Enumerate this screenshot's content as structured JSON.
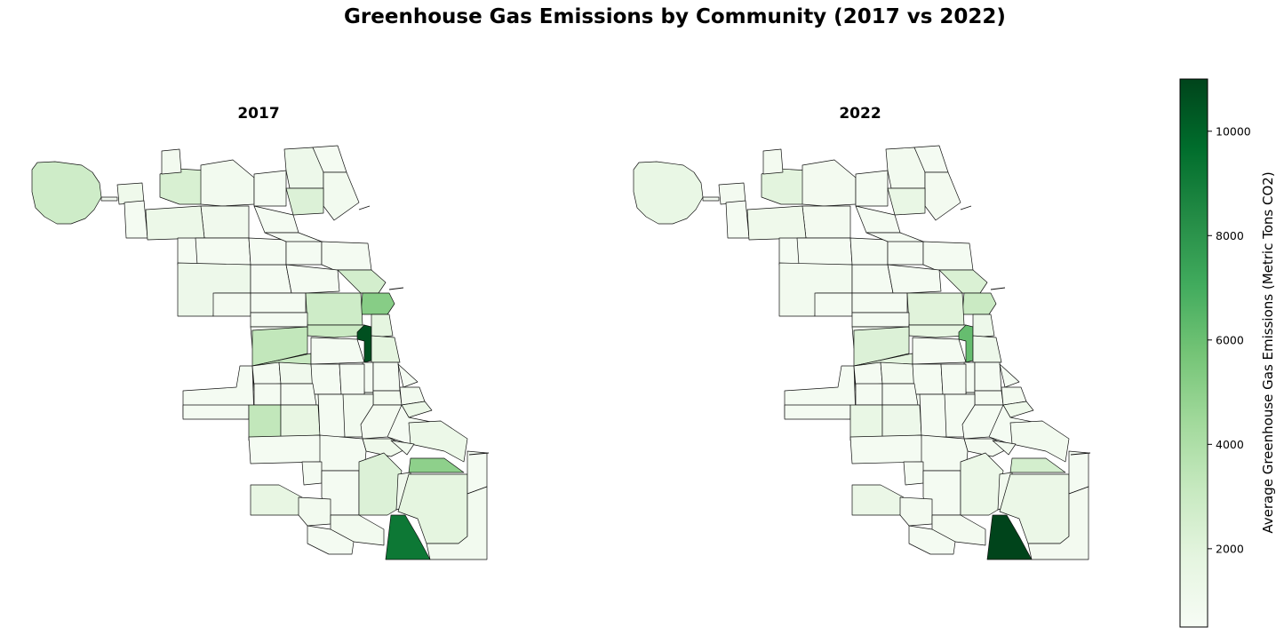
{
  "title": "Greenhouse Gas Emissions by Community (2017 vs 2022)",
  "panels": [
    {
      "title": "2017"
    },
    {
      "title": "2022"
    }
  ],
  "colorbar": {
    "label": "Average Greenhouse Gas Emissions (Metric Tons CO2)",
    "colormap": "Greens",
    "range": [
      500,
      11000
    ],
    "ticks": [
      "2000",
      "4000",
      "6000",
      "8000",
      "10000"
    ],
    "tick_values": [
      2000,
      4000,
      6000,
      8000,
      10000
    ]
  },
  "map_data": {
    "2017": {
      "ohare": 2800,
      "north_west": 1100,
      "norwood_park": 2400,
      "nw_edge": 700,
      "edison_park": 900,
      "forest_glen": 850,
      "north_park": 700,
      "west_ridge": 1200,
      "rogers_park": 700,
      "edgewater": 900,
      "uptown": 2200,
      "lincoln_square": 700,
      "albany_park": 1000,
      "irving_park": 1300,
      "portage_park": 700,
      "jefferson_park": 700,
      "dunning": 1200,
      "montclare": 800,
      "belmont_cragin": 700,
      "hermosa": 700,
      "avondale": 700,
      "north_center": 700,
      "lake_view": 700,
      "lincoln_park": 2600,
      "near_north": 5200,
      "logan_square": 700,
      "humboldt_park": 700,
      "west_town": 2800,
      "austin": 700,
      "west_garfield": 700,
      "east_garfield": 700,
      "near_west": 3000,
      "loop": 10600,
      "loop_east": 1800,
      "north_lawndale": 3300,
      "south_lawndale": 3100,
      "lower_west_side": 700,
      "near_south": 1800,
      "armour_square": 700,
      "douglas": 700,
      "oakland": 700,
      "fuller_park": 700,
      "grand_boulevard": 900,
      "kenwood": 900,
      "hyde_park": 1400,
      "garfield_ridge": 700,
      "archer_heights": 700,
      "brighton_park": 1000,
      "mckinley_park": 700,
      "bridgeport": 700,
      "new_city": 700,
      "west_elsdon": 700,
      "gage_park": 700,
      "clearing": 700,
      "west_lawn": 3300,
      "chicago_lawn": 1600,
      "west_englewood": 700,
      "englewood": 900,
      "greater_grand_crossing": 800,
      "woodlawn": 700,
      "south_shore": 1300,
      "chatham": 1100,
      "avalon_park": 900,
      "south_chicago": 5000,
      "ashburn": 700,
      "auburn_gresham": 700,
      "beverly": 700,
      "washington_heights": 700,
      "mount_greenwood": 1600,
      "morgan_park": 900,
      "roseland": 2200,
      "calumet_heights": 1000,
      "pullman": 900,
      "south_deering": 1800,
      "east_side": 700,
      "west_pullman": 700,
      "riverdale": 9200,
      "hegewisch": 900,
      "edison_strip": 700
    },
    "2022": {
      "ohare": 1500,
      "north_west": 800,
      "norwood_park": 1900,
      "nw_edge": 700,
      "edison_park": 800,
      "forest_glen": 800,
      "north_park": 700,
      "west_ridge": 900,
      "rogers_park": 700,
      "edgewater": 800,
      "uptown": 1500,
      "lincoln_square": 700,
      "albany_park": 800,
      "irving_park": 1100,
      "portage_park": 700,
      "jefferson_park": 700,
      "dunning": 900,
      "montclare": 700,
      "belmont_cragin": 700,
      "hermosa": 700,
      "avondale": 700,
      "north_center": 700,
      "lake_view": 700,
      "lincoln_park": 2300,
      "near_north": 3000,
      "logan_square": 700,
      "humboldt_park": 700,
      "west_town": 2000,
      "austin": 700,
      "west_garfield": 700,
      "east_garfield": 700,
      "near_west": 1700,
      "loop": 6100,
      "loop_east": 1200,
      "north_lawndale": 2200,
      "south_lawndale": 1900,
      "lower_west_side": 700,
      "near_south": 1200,
      "armour_square": 700,
      "douglas": 700,
      "oakland": 700,
      "fuller_park": 700,
      "grand_boulevard": 800,
      "kenwood": 800,
      "hyde_park": 1100,
      "garfield_ridge": 700,
      "archer_heights": 700,
      "brighton_park": 900,
      "mckinley_park": 700,
      "bridgeport": 700,
      "new_city": 700,
      "west_elsdon": 700,
      "gage_park": 700,
      "clearing": 700,
      "west_lawn": 1500,
      "chicago_lawn": 1200,
      "west_englewood": 700,
      "englewood": 700,
      "greater_grand_crossing": 700,
      "woodlawn": 700,
      "south_shore": 900,
      "chatham": 800,
      "avalon_park": 800,
      "south_chicago": 2600,
      "ashburn": 700,
      "auburn_gresham": 700,
      "beverly": 700,
      "washington_heights": 700,
      "mount_greenwood": 1400,
      "morgan_park": 800,
      "roseland": 1300,
      "calumet_heights": 900,
      "pullman": 800,
      "south_deering": 1400,
      "east_side": 700,
      "west_pullman": 700,
      "riverdale": 11000,
      "hegewisch": 800,
      "edison_strip": 700
    }
  }
}
